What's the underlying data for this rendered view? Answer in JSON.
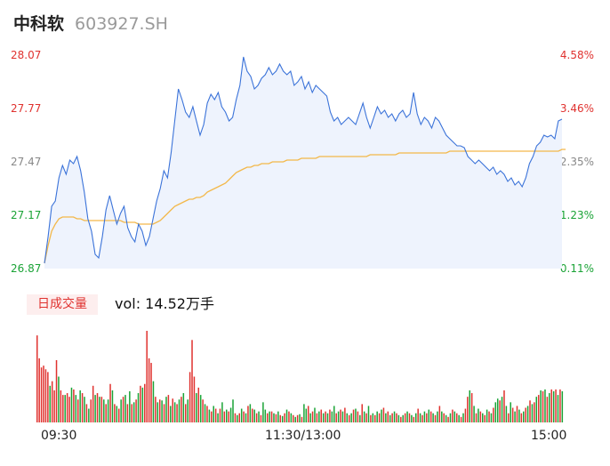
{
  "header": {
    "name": "中科软",
    "code": "603927.SH"
  },
  "volume_panel": {
    "badge": "日成交量",
    "label": "vol: 14.52万手"
  },
  "colors": {
    "price_line": "#3b73d9",
    "avg_line": "#f3b84a",
    "area_fill": "#eef3fd",
    "up": "#e0322f",
    "down": "#1aa336",
    "neutral": "#888888"
  },
  "chart_data": [
    {
      "type": "line",
      "price_ticks": [
        "28.07",
        "27.77",
        "27.47",
        "27.17",
        "26.87"
      ],
      "pct_ticks": [
        "4.58%",
        "3.46%",
        "2.35%",
        "1.23%",
        "0.11%"
      ],
      "ylim": [
        26.87,
        28.07
      ],
      "x_ticks": [
        "09:30",
        "11:30/13:00",
        "15:00"
      ],
      "series": [
        {
          "values": [
            26.9,
            27.05,
            27.22,
            27.25,
            27.38,
            27.45,
            27.4,
            27.48,
            27.46,
            27.5,
            27.42,
            27.3,
            27.15,
            27.08,
            26.95,
            26.93,
            27.05,
            27.2,
            27.28,
            27.2,
            27.12,
            27.18,
            27.22,
            27.1,
            27.05,
            27.02,
            27.12,
            27.08,
            27.0,
            27.05,
            27.15,
            27.25,
            27.32,
            27.42,
            27.38,
            27.52,
            27.7,
            27.88,
            27.82,
            27.75,
            27.72,
            27.78,
            27.7,
            27.62,
            27.68,
            27.8,
            27.85,
            27.82,
            27.86,
            27.78,
            27.75,
            27.7,
            27.72,
            27.82,
            27.9,
            28.06,
            27.98,
            27.95,
            27.88,
            27.9,
            27.94,
            27.96,
            28.0,
            27.96,
            27.98,
            28.02,
            27.98,
            27.96,
            27.98,
            27.9,
            27.92,
            27.95,
            27.88,
            27.92,
            27.86,
            27.9,
            27.88,
            27.86,
            27.84,
            27.75,
            27.7,
            27.72,
            27.68,
            27.7,
            27.72,
            27.7,
            27.68,
            27.74,
            27.8,
            27.72,
            27.66,
            27.72,
            27.78,
            27.74,
            27.76,
            27.72,
            27.74,
            27.7,
            27.74,
            27.76,
            27.72,
            27.74,
            27.86,
            27.74,
            27.68,
            27.72,
            27.7,
            27.66,
            27.72,
            27.7,
            27.66,
            27.62,
            27.6,
            27.58,
            27.56,
            27.56,
            27.55,
            27.5,
            27.48,
            27.46,
            27.48,
            27.46,
            27.44,
            27.42,
            27.44,
            27.4,
            27.42,
            27.4,
            27.36,
            27.38,
            27.34,
            27.36,
            27.33,
            27.38,
            27.46,
            27.5,
            27.56,
            27.58,
            27.62,
            27.61,
            27.62,
            27.6,
            27.7,
            27.71
          ],
          "pct_values": [
            0.14,
            0.67,
            1.3,
            1.41,
            1.9,
            2.16,
            1.97,
            2.27,
            2.2,
            2.35,
            2.05,
            1.6,
            1.04,
            0.78,
            0.3,
            0.22,
            0.67,
            1.23,
            1.53,
            1.23,
            0.93,
            1.16,
            1.3,
            0.86,
            0.67,
            0.56,
            0.93,
            0.78,
            0.48,
            0.67,
            1.04,
            1.41,
            1.67,
            2.05,
            1.9,
            2.42,
            3.09,
            3.76,
            3.53,
            3.27,
            3.16,
            3.38,
            3.09,
            2.79,
            3.01,
            3.46,
            3.65,
            3.53,
            3.68,
            3.38,
            3.27,
            3.09,
            3.16,
            3.53,
            3.83,
            4.43,
            4.13,
            4.02,
            3.76,
            3.83,
            3.98,
            4.06,
            4.2,
            4.06,
            4.13,
            4.28,
            4.13,
            4.06,
            4.13,
            3.83,
            3.91,
            4.02,
            3.76,
            3.91,
            3.68,
            3.83,
            3.76,
            3.68,
            3.61,
            3.27,
            3.09,
            3.16,
            3.01,
            3.09,
            3.16,
            3.09,
            3.01,
            3.24,
            3.46,
            3.16,
            2.94,
            3.16,
            3.38,
            3.24,
            3.31,
            3.16,
            3.24,
            3.09,
            3.24,
            3.31,
            3.16,
            3.24,
            3.68,
            3.24,
            3.01,
            3.16,
            3.09,
            2.94,
            3.16,
            3.09,
            2.94,
            2.79,
            2.72,
            2.64,
            2.57,
            2.57,
            2.53,
            2.35,
            2.27,
            2.2,
            2.27,
            2.2,
            2.12,
            2.05,
            2.12,
            1.97,
            2.05,
            1.97,
            1.82,
            1.9,
            1.75,
            1.82,
            1.71,
            1.9,
            2.2,
            2.35,
            2.57,
            2.64,
            2.79,
            2.76,
            2.79,
            2.72,
            3.09,
            3.12
          ]
        },
        {
          "values": [
            26.9,
            27.0,
            27.08,
            27.12,
            27.15,
            27.16,
            27.16,
            27.16,
            27.16,
            27.15,
            27.15,
            27.14,
            27.14,
            27.14,
            27.14,
            27.14,
            27.14,
            27.14,
            27.14,
            27.14,
            27.14,
            27.14,
            27.13,
            27.13,
            27.13,
            27.13,
            27.12,
            27.12,
            27.12,
            27.12,
            27.12,
            27.13,
            27.14,
            27.16,
            27.18,
            27.2,
            27.22,
            27.23,
            27.24,
            27.25,
            27.26,
            27.26,
            27.27,
            27.27,
            27.28,
            27.3,
            27.31,
            27.32,
            27.33,
            27.34,
            27.35,
            27.37,
            27.39,
            27.41,
            27.42,
            27.43,
            27.44,
            27.44,
            27.45,
            27.45,
            27.46,
            27.46,
            27.46,
            27.47,
            27.47,
            27.47,
            27.47,
            27.48,
            27.48,
            27.48,
            27.48,
            27.49,
            27.49,
            27.49,
            27.49,
            27.49,
            27.5,
            27.5,
            27.5,
            27.5,
            27.5,
            27.5,
            27.5,
            27.5,
            27.5,
            27.5,
            27.5,
            27.5,
            27.5,
            27.5,
            27.51,
            27.51,
            27.51,
            27.51,
            27.51,
            27.51,
            27.51,
            27.51,
            27.52,
            27.52,
            27.52,
            27.52,
            27.52,
            27.52,
            27.52,
            27.52,
            27.52,
            27.52,
            27.52,
            27.52,
            27.52,
            27.52,
            27.53,
            27.53,
            27.53,
            27.53,
            27.53,
            27.53,
            27.53,
            27.53,
            27.53,
            27.53,
            27.53,
            27.53,
            27.53,
            27.53,
            27.53,
            27.53,
            27.53,
            27.53,
            27.53,
            27.53,
            27.53,
            27.53,
            27.53,
            27.53,
            27.53,
            27.53,
            27.53,
            27.53,
            27.53,
            27.53,
            27.53,
            27.54,
            27.54
          ]
        }
      ]
    },
    {
      "type": "bar",
      "values": [
        95,
        70,
        60,
        62,
        58,
        55,
        40,
        45,
        35,
        68,
        50,
        35,
        30,
        30,
        32,
        28,
        38,
        36,
        30,
        25,
        35,
        32,
        28,
        20,
        15,
        25,
        40,
        30,
        32,
        28,
        28,
        25,
        20,
        25,
        42,
        35,
        20,
        18,
        15,
        25,
        28,
        30,
        20,
        34,
        20,
        22,
        25,
        32,
        40,
        38,
        42,
        100,
        70,
        65,
        45,
        28,
        22,
        25,
        24,
        20,
        28,
        30,
        18,
        26,
        22,
        20,
        25,
        28,
        32,
        20,
        25,
        55,
        90,
        50,
        32,
        38,
        30,
        25,
        20,
        18,
        14,
        12,
        18,
        15,
        10,
        15,
        22,
        12,
        14,
        12,
        16,
        25,
        10,
        8,
        10,
        15,
        12,
        10,
        18,
        20,
        15,
        14,
        10,
        12,
        8,
        22,
        14,
        10,
        12,
        12,
        10,
        9,
        12,
        8,
        7,
        10,
        14,
        12,
        10,
        8,
        6,
        8,
        9,
        6,
        20,
        15,
        18,
        10,
        12,
        16,
        10,
        12,
        14,
        10,
        12,
        10,
        14,
        12,
        18,
        10,
        12,
        14,
        12,
        16,
        10,
        8,
        10,
        14,
        15,
        12,
        8,
        20,
        12,
        10,
        18,
        8,
        10,
        8,
        12,
        10,
        14,
        16,
        10,
        12,
        8,
        10,
        12,
        10,
        8,
        6,
        8,
        10,
        12,
        10,
        8,
        6,
        10,
        15,
        10,
        8,
        12,
        10,
        14,
        12,
        10,
        8,
        12,
        18,
        12,
        10,
        8,
        6,
        10,
        14,
        12,
        10,
        8,
        6,
        10,
        15,
        28,
        35,
        32,
        18,
        10,
        15,
        12,
        10,
        8,
        14,
        12,
        10,
        16,
        22,
        26,
        24,
        28,
        35,
        18,
        10,
        22,
        16,
        12,
        18,
        14,
        10,
        12,
        16,
        18,
        24,
        20,
        22,
        28,
        30,
        35,
        34,
        36,
        28,
        32,
        36,
        34,
        36,
        30,
        36,
        34
      ],
      "colors": [
        "up",
        "up",
        "up",
        "up",
        "up",
        "up",
        "down",
        "up",
        "up",
        "up",
        "down",
        "up",
        "up",
        "down",
        "up",
        "up",
        "down",
        "up",
        "down",
        "up",
        "down",
        "up",
        "down",
        "up",
        "down",
        "up",
        "up",
        "down",
        "up",
        "down",
        "up",
        "down",
        "up",
        "down",
        "up",
        "down",
        "up",
        "down",
        "up",
        "down",
        "up",
        "down",
        "up",
        "down",
        "up",
        "down",
        "up",
        "down",
        "up",
        "down",
        "up",
        "up",
        "up",
        "up",
        "down",
        "up",
        "down",
        "up",
        "down",
        "up",
        "down",
        "up",
        "down",
        "up",
        "down",
        "up",
        "down",
        "up",
        "down",
        "up",
        "down",
        "up",
        "up",
        "up",
        "down",
        "up",
        "down",
        "up",
        "down",
        "up",
        "down",
        "up",
        "down",
        "up",
        "down",
        "up",
        "down",
        "up",
        "down",
        "up",
        "down",
        "down",
        "up",
        "down",
        "up",
        "down",
        "up",
        "down",
        "up",
        "down",
        "up",
        "down",
        "up",
        "down",
        "up",
        "down",
        "down",
        "up",
        "down",
        "up",
        "down",
        "up",
        "down",
        "up",
        "down",
        "up",
        "down",
        "up",
        "down",
        "up",
        "down",
        "up",
        "down",
        "up",
        "down",
        "down",
        "up",
        "down",
        "up",
        "down",
        "up",
        "down",
        "up",
        "down",
        "up",
        "down",
        "up",
        "down",
        "down",
        "up",
        "down",
        "up",
        "down",
        "up",
        "down",
        "up",
        "down",
        "up",
        "down",
        "up",
        "down",
        "up",
        "down",
        "up",
        "down",
        "up",
        "down",
        "up",
        "down",
        "up",
        "down",
        "up",
        "down",
        "up",
        "down",
        "up",
        "down",
        "up",
        "down",
        "up",
        "down",
        "up",
        "down",
        "up",
        "down",
        "up",
        "down",
        "up",
        "down",
        "up",
        "down",
        "up",
        "down",
        "up",
        "down",
        "up",
        "down",
        "up",
        "down",
        "up",
        "down",
        "up",
        "down",
        "up",
        "down",
        "up",
        "down",
        "up",
        "down",
        "up",
        "up",
        "down",
        "up",
        "down",
        "up",
        "down",
        "up",
        "down",
        "up",
        "down",
        "up",
        "down",
        "up",
        "down",
        "down",
        "up",
        "down",
        "up",
        "down",
        "up",
        "down",
        "up",
        "down",
        "up",
        "down",
        "up",
        "down",
        "up",
        "down",
        "up",
        "down",
        "up",
        "down",
        "up",
        "down",
        "up",
        "down",
        "up",
        "down",
        "up",
        "down",
        "up",
        "down",
        "up",
        "down",
        "up",
        "down",
        "up",
        "up",
        "down",
        "neutral"
      ]
    }
  ]
}
